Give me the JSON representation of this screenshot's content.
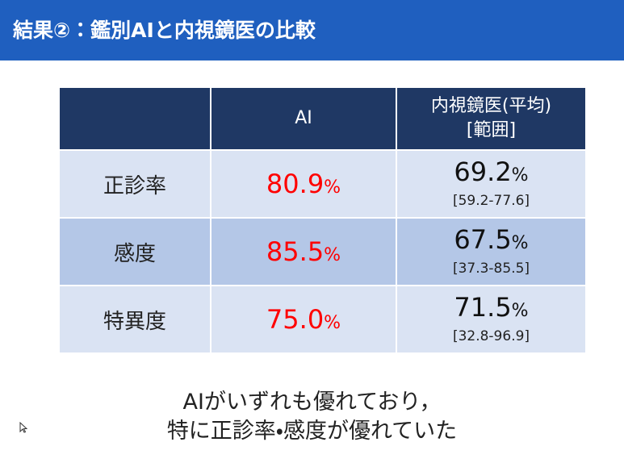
{
  "header": {
    "title": "結果②：鑑別AIと内視鏡医の比較"
  },
  "table": {
    "columns": [
      "AI",
      "内視鏡医(平均)",
      "[範囲]"
    ],
    "rows": [
      {
        "label": "正診率",
        "ai": "80.9",
        "ai_unit": "%",
        "endoscopist": "69.2",
        "endoscopist_unit": "%",
        "range": "[59.2-77.6]"
      },
      {
        "label": "感度",
        "ai": "85.5",
        "ai_unit": "%",
        "endoscopist": "67.5",
        "endoscopist_unit": "%",
        "range": "[37.3-85.5]"
      },
      {
        "label": "特異度",
        "ai": "75.0",
        "ai_unit": "%",
        "endoscopist": "71.5",
        "endoscopist_unit": "%",
        "range": "[32.8-96.9]"
      }
    ]
  },
  "footer": {
    "lines": [
      "AIがいずれも優れており，",
      "特に正診率・感度が優れていた"
    ]
  }
}
